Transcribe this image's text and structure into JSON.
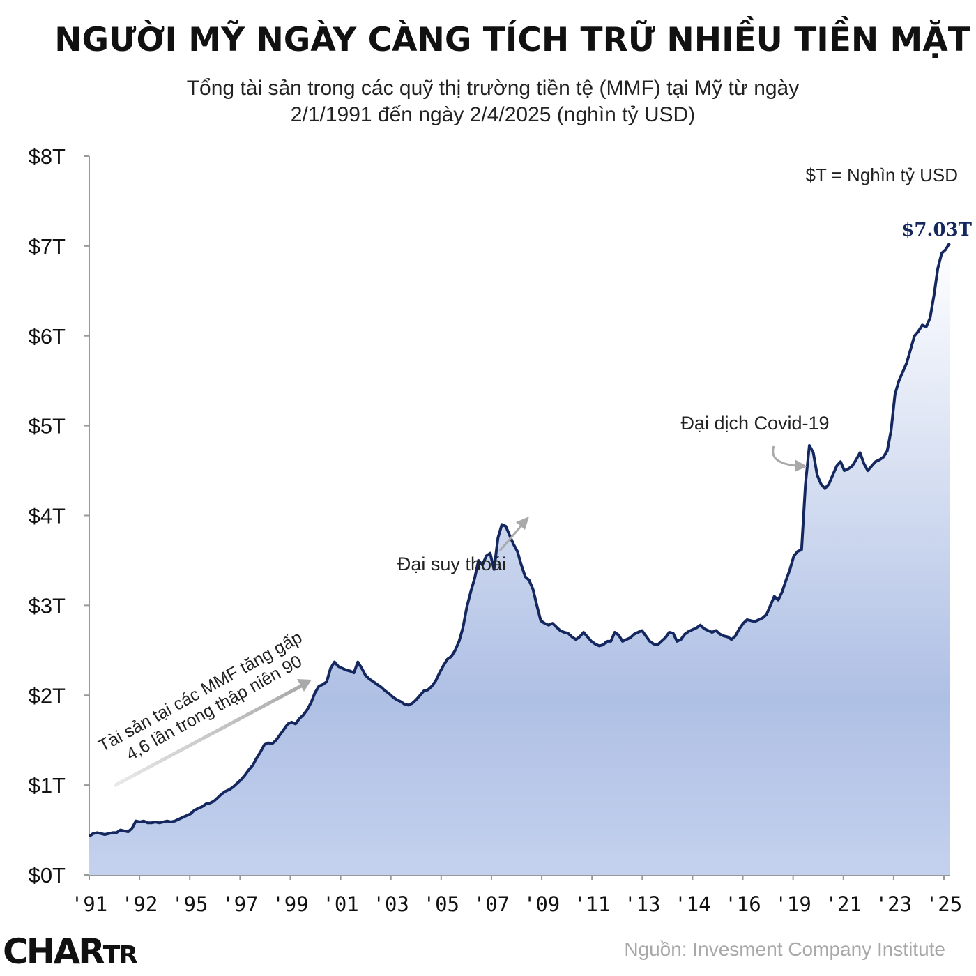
{
  "title": "NGƯỜI MỸ NGÀY CÀNG TÍCH TRỮ NHIỀU TIỀN MẶT",
  "subtitle_line1": "Tổng tài sản trong các quỹ thị trường tiền tệ (MMF) tại Mỹ từ ngày",
  "subtitle_line2": "2/1/1991 đến ngày 2/4/2025 (nghìn tỷ USD)",
  "unit_note": "$T = Nghìn tỷ USD",
  "source": "Nguồn: Invesment Company Institute",
  "brand_main": "CHAR",
  "brand_small": "TR",
  "colors": {
    "line": "#14275e",
    "area_top": "#ffffff",
    "area_mid": "#afc0e5",
    "area_bottom": "#c4d1ee",
    "annotation_arrow": "#a9a9a9",
    "axis": "#999999"
  },
  "chart_data": {
    "type": "area",
    "ylim": [
      0,
      8
    ],
    "yticks": [
      0,
      1,
      2,
      3,
      4,
      5,
      6,
      7,
      8
    ],
    "ytick_labels": [
      "$0T",
      "$1T",
      "$2T",
      "$3T",
      "$4T",
      "$5T",
      "$6T",
      "$7T",
      "$8T"
    ],
    "xtick_labels": [
      "'91",
      "'92",
      "'95",
      "'97",
      "'99",
      "'01",
      "'03",
      "'05",
      "'07",
      "'09",
      "'11",
      "'13",
      "'14",
      "'16",
      "'19",
      "'21",
      "'23",
      "'25"
    ],
    "series": [
      {
        "values": [
          0.43,
          0.46,
          0.47,
          0.46,
          0.45,
          0.46,
          0.47,
          0.47,
          0.5,
          0.49,
          0.48,
          0.52,
          0.6,
          0.59,
          0.6,
          0.58,
          0.58,
          0.59,
          0.58,
          0.59,
          0.6,
          0.59,
          0.6,
          0.62,
          0.64,
          0.66,
          0.68,
          0.72,
          0.74,
          0.76,
          0.79,
          0.8,
          0.82,
          0.86,
          0.9,
          0.93,
          0.95,
          0.98,
          1.02,
          1.06,
          1.11,
          1.17,
          1.22,
          1.3,
          1.37,
          1.45,
          1.47,
          1.46,
          1.5,
          1.56,
          1.62,
          1.68,
          1.7,
          1.68,
          1.74,
          1.78,
          1.84,
          1.92,
          2.03,
          2.1,
          2.12,
          2.15,
          2.3,
          2.37,
          2.32,
          2.3,
          2.28,
          2.27,
          2.25,
          2.37,
          2.3,
          2.22,
          2.18,
          2.15,
          2.12,
          2.09,
          2.05,
          2.02,
          1.98,
          1.95,
          1.93,
          1.9,
          1.89,
          1.91,
          1.95,
          2.0,
          2.05,
          2.06,
          2.1,
          2.16,
          2.25,
          2.33,
          2.4,
          2.43,
          2.5,
          2.6,
          2.75,
          2.98,
          3.15,
          3.3,
          3.5,
          3.45,
          3.55,
          3.58,
          3.4,
          3.75,
          3.9,
          3.88,
          3.78,
          3.68,
          3.6,
          3.45,
          3.32,
          3.28,
          3.18,
          3.0,
          2.83,
          2.8,
          2.78,
          2.8,
          2.76,
          2.72,
          2.7,
          2.69,
          2.65,
          2.62,
          2.65,
          2.7,
          2.65,
          2.6,
          2.57,
          2.55,
          2.56,
          2.6,
          2.6,
          2.7,
          2.67,
          2.6,
          2.62,
          2.64,
          2.68,
          2.7,
          2.72,
          2.66,
          2.6,
          2.57,
          2.56,
          2.6,
          2.64,
          2.7,
          2.69,
          2.6,
          2.62,
          2.68,
          2.71,
          2.73,
          2.75,
          2.78,
          2.74,
          2.72,
          2.7,
          2.72,
          2.68,
          2.66,
          2.65,
          2.62,
          2.66,
          2.74,
          2.8,
          2.84,
          2.83,
          2.82,
          2.84,
          2.86,
          2.9,
          3.0,
          3.1,
          3.06,
          3.15,
          3.28,
          3.4,
          3.55,
          3.6,
          3.62,
          4.35,
          4.78,
          4.7,
          4.45,
          4.35,
          4.3,
          4.35,
          4.45,
          4.55,
          4.6,
          4.5,
          4.52,
          4.55,
          4.62,
          4.7,
          4.58,
          4.5,
          4.55,
          4.6,
          4.62,
          4.65,
          4.72,
          4.95,
          5.35,
          5.5,
          5.6,
          5.7,
          5.85,
          6.0,
          6.05,
          6.12,
          6.1,
          6.2,
          6.45,
          6.75,
          6.92,
          6.96,
          7.03
        ]
      }
    ],
    "annotations": [
      {
        "text_line1": "Tài sản tại các MMF tăng gấp",
        "text_line2": "4,6 lần trong thập niên 90"
      },
      {
        "text": "Đại suy thoái"
      },
      {
        "text": "Đại dịch Covid-19"
      }
    ],
    "end_label": "$7.03T"
  }
}
